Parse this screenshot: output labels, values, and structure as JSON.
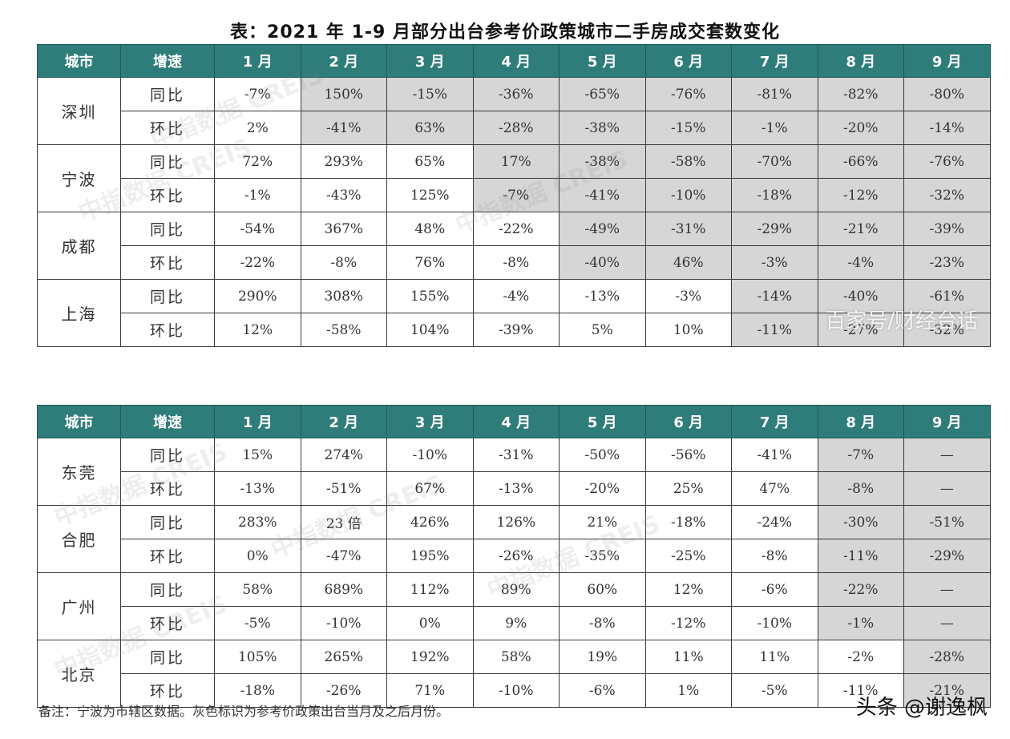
{
  "title": "表：2021 年 1-9 月部分出台参考价政策城市二手房成交套数变化",
  "headers": [
    "城市",
    "增速",
    "1 月",
    "2 月",
    "3 月",
    "4 月",
    "5 月",
    "6 月",
    "7 月",
    "8 月",
    "9 月"
  ],
  "table1": [
    {
      "city": "深圳",
      "rows": [
        {
          "rate": "同比",
          "cells": [
            "-7%",
            "150%",
            "-15%",
            "-36%",
            "-65%",
            "-76%",
            "-81%",
            "-82%",
            "-80%"
          ],
          "gray_from": 1
        },
        {
          "rate": "环比",
          "cells": [
            "2%",
            "-41%",
            "63%",
            "-28%",
            "-38%",
            "-15%",
            "-1%",
            "-20%",
            "-14%"
          ],
          "gray_from": 1
        }
      ]
    },
    {
      "city": "宁波",
      "rows": [
        {
          "rate": "同比",
          "cells": [
            "72%",
            "293%",
            "65%",
            "17%",
            "-38%",
            "-58%",
            "-70%",
            "-66%",
            "-76%"
          ],
          "gray_from": 3
        },
        {
          "rate": "环比",
          "cells": [
            "-1%",
            "-43%",
            "125%",
            "-7%",
            "-41%",
            "-10%",
            "-18%",
            "-12%",
            "-32%"
          ],
          "gray_from": 3
        }
      ]
    },
    {
      "city": "成都",
      "rows": [
        {
          "rate": "同比",
          "cells": [
            "-54%",
            "367%",
            "48%",
            "-22%",
            "-49%",
            "-31%",
            "-29%",
            "-21%",
            "-39%"
          ],
          "gray_from": 4
        },
        {
          "rate": "环比",
          "cells": [
            "-22%",
            "-8%",
            "76%",
            "-8%",
            "-40%",
            "46%",
            "-3%",
            "-4%",
            "-23%"
          ],
          "gray_from": 4
        }
      ]
    },
    {
      "city": "上海",
      "rows": [
        {
          "rate": "同比",
          "cells": [
            "290%",
            "308%",
            "155%",
            "-4%",
            "-13%",
            "-3%",
            "-14%",
            "-40%",
            "-61%"
          ],
          "gray_from": 6
        },
        {
          "rate": "环比",
          "cells": [
            "12%",
            "-58%",
            "104%",
            "-39%",
            "5%",
            "10%",
            "-11%",
            "-27%",
            "-32%"
          ],
          "gray_from": 6
        }
      ]
    }
  ],
  "table2": [
    {
      "city": "东莞",
      "rows": [
        {
          "rate": "同比",
          "cells": [
            "15%",
            "274%",
            "-10%",
            "-31%",
            "-50%",
            "-56%",
            "-41%",
            "-7%",
            "—"
          ],
          "gray_from": 7
        },
        {
          "rate": "环比",
          "cells": [
            "-13%",
            "-51%",
            "67%",
            "-13%",
            "-20%",
            "25%",
            "47%",
            "-8%",
            "—"
          ],
          "gray_from": 7
        }
      ]
    },
    {
      "city": "合肥",
      "rows": [
        {
          "rate": "同比",
          "cells": [
            "283%",
            "23 倍",
            "426%",
            "126%",
            "21%",
            "-18%",
            "-24%",
            "-30%",
            "-51%"
          ],
          "gray_from": 7
        },
        {
          "rate": "环比",
          "cells": [
            "0%",
            "-47%",
            "195%",
            "-26%",
            "-35%",
            "-25%",
            "-8%",
            "-11%",
            "-29%"
          ],
          "gray_from": 7
        }
      ]
    },
    {
      "city": "广州",
      "rows": [
        {
          "rate": "同比",
          "cells": [
            "58%",
            "689%",
            "112%",
            "89%",
            "60%",
            "12%",
            "-6%",
            "-22%",
            "—"
          ],
          "gray_from": 7
        },
        {
          "rate": "环比",
          "cells": [
            "-5%",
            "-10%",
            "0%",
            "9%",
            "-8%",
            "-12%",
            "-10%",
            "-1%",
            "—"
          ],
          "gray_from": 7
        }
      ]
    },
    {
      "city": "北京",
      "rows": [
        {
          "rate": "同比",
          "cells": [
            "105%",
            "265%",
            "192%",
            "58%",
            "19%",
            "11%",
            "11%",
            "-2%",
            "-28%"
          ],
          "gray_from": 8
        },
        {
          "rate": "环比",
          "cells": [
            "-18%",
            "-26%",
            "71%",
            "-10%",
            "-6%",
            "1%",
            "-5%",
            "-11%",
            "-21%"
          ],
          "gray_from": 8
        }
      ]
    }
  ],
  "note": "备注：宁波为市辖区数据。灰色标识为参考价政策出台当月及之后月份。",
  "watermarks": [
    "中指数据 CREIS"
  ],
  "overlay_text": "百家号/财经台话",
  "brand": "头条 @谢逸枫",
  "colors": {
    "header_bg": "#2f7d7a",
    "gray_cell": "#d6d6d6"
  }
}
